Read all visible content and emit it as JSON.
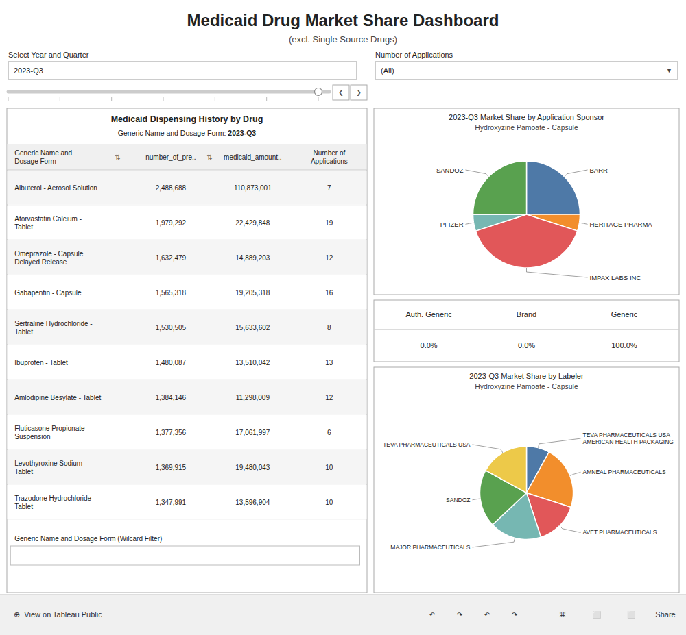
{
  "title": "Medicaid Drug Market Share Dashboard",
  "subtitle": "(excl. Single Source Drugs)",
  "annotations": [
    "Select Year and Quarter",
    "2023-Q3",
    "Number of Applications",
    "(All)",
    "▼",
    "❮",
    "❯",
    "⊕  View on Tableau Public",
    "↶",
    "↷",
    "↶",
    "↷",
    "⌘",
    "⬜",
    "⬜",
    "Share"
  ],
  "chart_data": [
    {
      "type": "table",
      "title": "Medicaid Dispensing History by Drug",
      "subtitle": [
        "Generic Name and Dosage Form: ",
        "2023-Q3"
      ],
      "columns": [
        "Generic Name and\nDosage Form",
        "number_of_pre..",
        "medicaid_amount..",
        "Number of\nApplications"
      ],
      "rows": [
        [
          "Albuterol - Aerosol Solution",
          "2,488,688",
          "110,873,001",
          "7"
        ],
        [
          "Atorvastatin Calcium -\nTablet",
          "1,979,292",
          "22,429,848",
          "19"
        ],
        [
          "Omeprazole - Capsule\nDelayed Release",
          "1,632,479",
          "14,889,203",
          "12"
        ],
        [
          "Gabapentin - Capsule",
          "1,565,318",
          "19,205,318",
          "16"
        ],
        [
          "Sertraline Hydrochloride -\nTablet",
          "1,530,505",
          "15,633,602",
          "8"
        ],
        [
          "Ibuprofen - Tablet",
          "1,480,087",
          "13,510,042",
          "13"
        ],
        [
          "Amlodipine Besylate - Tablet",
          "1,384,146",
          "11,298,009",
          "12"
        ],
        [
          "Fluticasone Propionate -\nSuspension",
          "1,377,356",
          "17,061,997",
          "6"
        ],
        [
          "Levothyroxine Sodium -\nTablet",
          "1,369,915",
          "19,480,043",
          "10"
        ],
        [
          "Trazodone Hydrochloride -\nTablet",
          "1,347,991",
          "13,596,904",
          "10"
        ]
      ],
      "annotations": [
        "⇅",
        "⇅",
        "Generic Name and Dosage Form (Wilcard Filter)"
      ]
    },
    {
      "type": "pie",
      "title": "2023-Q3 Market Share by Application Sponsor",
      "subtitle": "Hydroxyzine Pamoate - Capsule",
      "categories": [
        "BARR",
        "HERITAGE PHARMA",
        "IMPAX LABS INC",
        "PFIZER",
        "SANDOZ"
      ],
      "values": [
        25,
        5,
        40,
        5,
        25
      ]
    },
    {
      "type": "table",
      "columns": [
        "Auth. Generic",
        "Brand",
        "Generic"
      ],
      "rows": [
        [
          "0.0%",
          "0.0%",
          "100.0%"
        ]
      ]
    },
    {
      "type": "pie",
      "title": "2023-Q3 Market Share by Labeler",
      "subtitle": "Hydroxyzine Pamoate - Capsule",
      "categories": [
        "TEVA PHARMACEUTICALS USA AMERICAN HEALTH PACKAGING",
        "AMNEAL PHARMACEUTICALS",
        "AVET PHARMACEUTICALS",
        "MAJOR PHARMACEUTICALS",
        "SANDOZ",
        "TEVA PHARMACEUTICALS USA"
      ],
      "values": [
        8,
        22,
        15,
        18,
        20,
        17
      ]
    }
  ]
}
